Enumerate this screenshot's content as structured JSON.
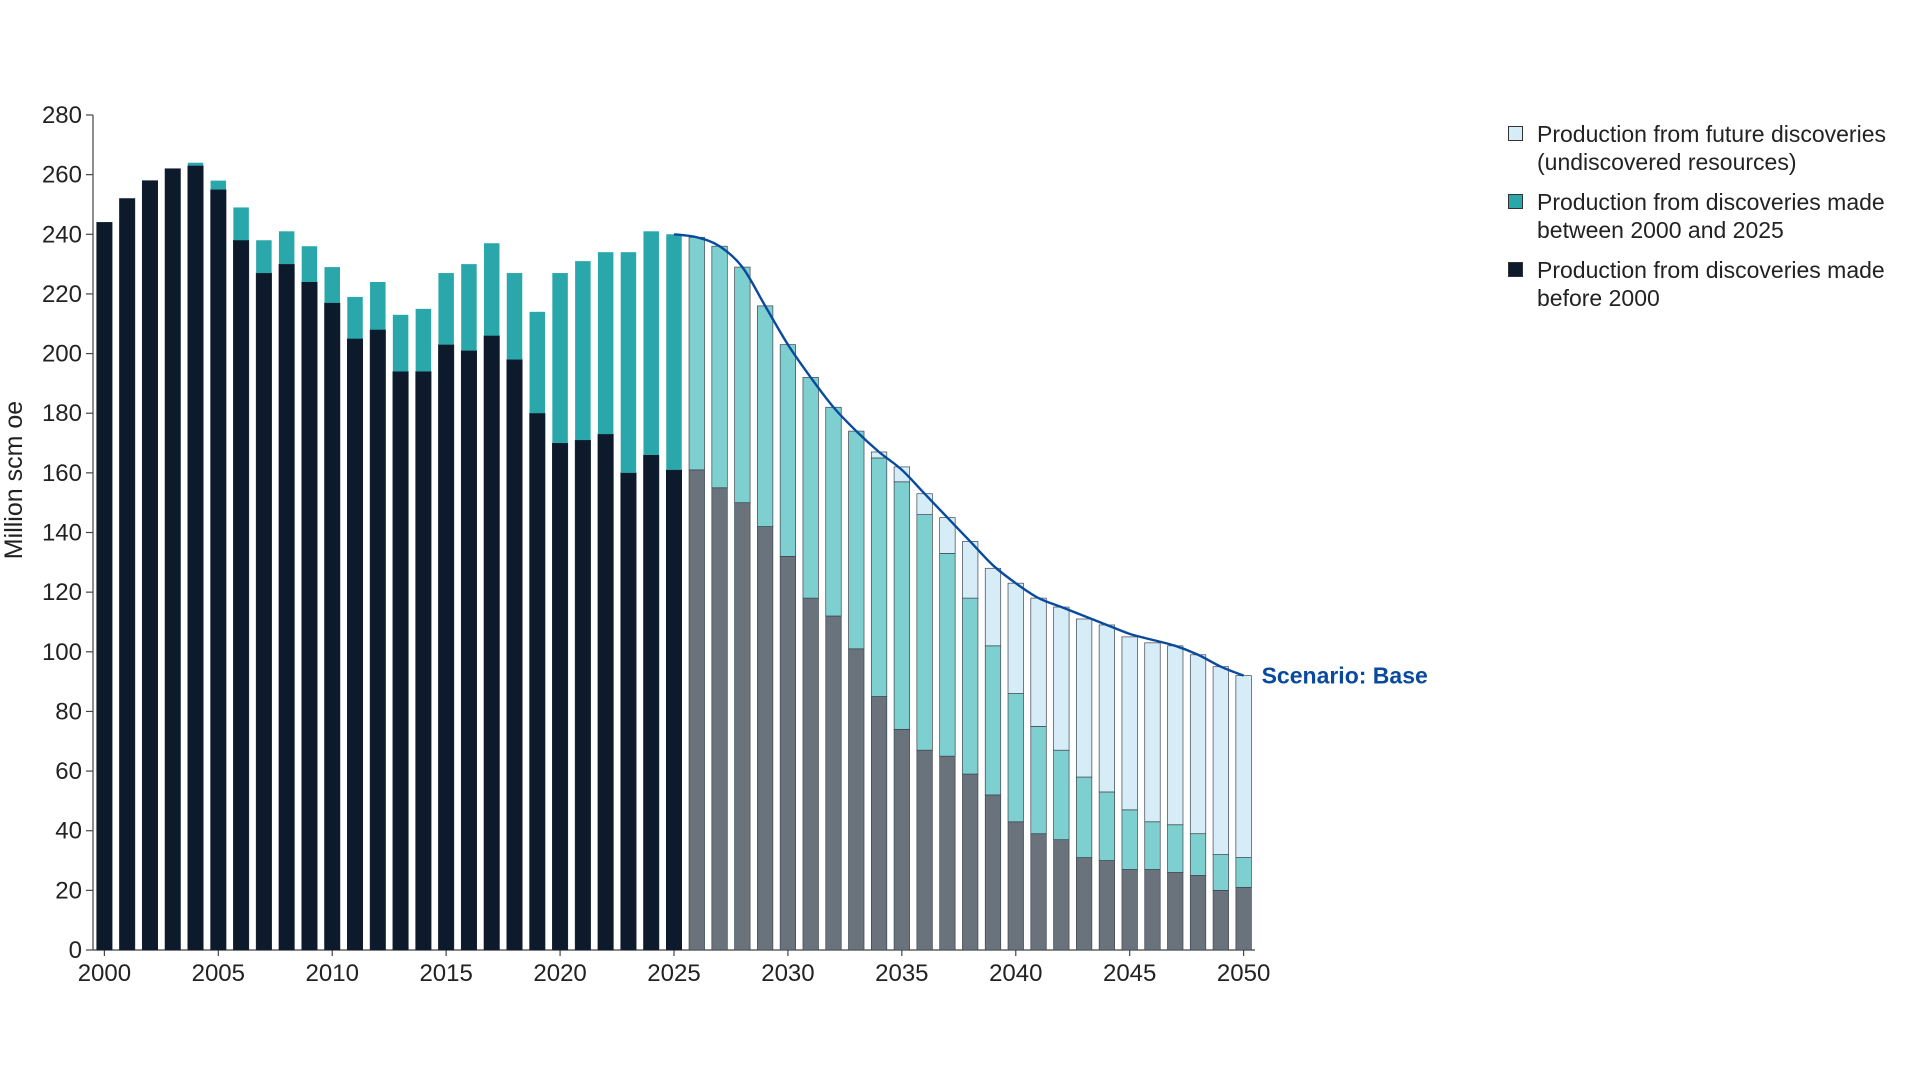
{
  "chart_data": {
    "type": "bar",
    "stacked": true,
    "ylabel": "Million scm oe",
    "xlabel": "",
    "ylim": [
      0,
      280
    ],
    "y_ticks": [
      "0",
      "20",
      "40",
      "60",
      "80",
      "100",
      "120",
      "140",
      "160",
      "180",
      "200",
      "220",
      "240",
      "260",
      "280"
    ],
    "x_ticks": [
      "2000",
      "2005",
      "2010",
      "2015",
      "2020",
      "2025",
      "2030",
      "2035",
      "2040",
      "2045",
      "2050"
    ],
    "categories": [
      2000,
      2001,
      2002,
      2003,
      2004,
      2005,
      2006,
      2007,
      2008,
      2009,
      2010,
      2011,
      2012,
      2013,
      2014,
      2015,
      2016,
      2017,
      2018,
      2019,
      2020,
      2021,
      2022,
      2023,
      2024,
      2025,
      2026,
      2027,
      2028,
      2029,
      2030,
      2031,
      2032,
      2033,
      2034,
      2035,
      2036,
      2037,
      2038,
      2039,
      2040,
      2041,
      2042,
      2043,
      2044,
      2045,
      2046,
      2047,
      2048,
      2049,
      2050
    ],
    "historical_through": 2025,
    "series": [
      {
        "name_lines": [
          "Production from discoveries made",
          "before 2000"
        ],
        "color_historical": "#0c1a2c",
        "color_forecast": "#6a737c",
        "values": [
          244,
          252,
          258,
          262,
          263,
          255,
          238,
          227,
          230,
          224,
          217,
          205,
          208,
          194,
          194,
          203,
          201,
          206,
          198,
          180,
          170,
          171,
          173,
          160,
          166,
          161,
          161,
          155,
          150,
          142,
          132,
          118,
          112,
          101,
          85,
          74,
          67,
          65,
          59,
          52,
          43,
          39,
          37,
          31,
          30,
          27,
          27,
          26,
          25,
          20,
          21
        ]
      },
      {
        "name_lines": [
          "Production from discoveries made",
          "between 2000 and 2025"
        ],
        "color_historical": "#2aa7ab",
        "color_forecast": "#7ecfcf",
        "values": [
          0,
          0,
          0,
          0,
          1,
          3,
          11,
          11,
          11,
          12,
          12,
          14,
          16,
          19,
          21,
          24,
          29,
          31,
          29,
          34,
          57,
          60,
          61,
          74,
          75,
          79,
          78,
          81,
          79,
          74,
          71,
          74,
          70,
          73,
          80,
          83,
          79,
          68,
          59,
          50,
          43,
          36,
          30,
          27,
          23,
          20,
          16,
          16,
          14,
          12,
          10
        ]
      },
      {
        "name_lines": [
          "Production from future discoveries",
          "(undiscovered resources)"
        ],
        "color_historical": "#d6ecf7",
        "color_forecast": "#d6ecf7",
        "values": [
          0,
          0,
          0,
          0,
          0,
          0,
          0,
          0,
          0,
          0,
          0,
          0,
          0,
          0,
          0,
          0,
          0,
          0,
          0,
          0,
          0,
          0,
          0,
          0,
          0,
          0,
          0,
          0,
          0,
          0,
          0,
          0,
          0,
          0,
          2,
          5,
          7,
          12,
          19,
          26,
          37,
          43,
          48,
          53,
          56,
          58,
          60,
          60,
          60,
          63,
          61
        ]
      }
    ],
    "scenario_line": {
      "label": "Scenario: Base",
      "color": "#0a4a9c",
      "x": [
        2025,
        2026,
        2027,
        2028,
        2029,
        2030,
        2031,
        2032,
        2033,
        2034,
        2035,
        2036,
        2037,
        2038,
        2039,
        2040,
        2041,
        2042,
        2043,
        2044,
        2045,
        2046,
        2047,
        2048,
        2049,
        2050
      ],
      "y": [
        240,
        239,
        236,
        229,
        216,
        203,
        192,
        182,
        174,
        167,
        161,
        153,
        145,
        137,
        129,
        123,
        118,
        115,
        112,
        109,
        106,
        104,
        102,
        99,
        95,
        92
      ]
    },
    "legend_position": "right"
  }
}
